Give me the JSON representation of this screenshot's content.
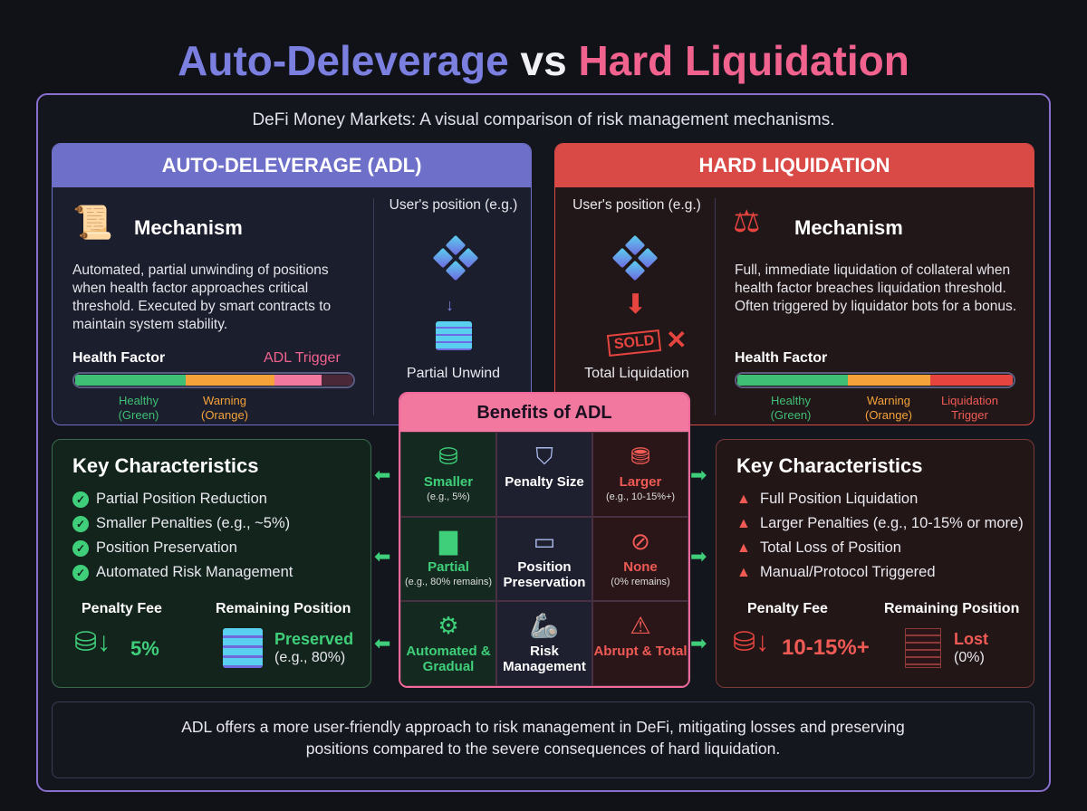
{
  "title": {
    "part1": "Auto-Deleverage",
    "part2": "vs",
    "part3": "Hard Liquidation"
  },
  "subtitle": "DeFi Money Markets: A visual comparison of risk management mechanisms.",
  "adl": {
    "header": "AUTO-DELEVERAGE (ADL)",
    "mechanism_title": "Mechanism",
    "description": "Automated, partial unwinding of positions when health factor approaches critical threshold. Executed by smart contracts to maintain system stability.",
    "health_label": "Health Factor",
    "trigger_label": "ADL Trigger",
    "bar_labels": [
      "Healthy (Green)",
      "Warning (Orange)"
    ],
    "position_label": "User's position (e.g.)",
    "result_label": "Partial Unwind"
  },
  "hard": {
    "header": "HARD LIQUIDATION",
    "mechanism_title": "Mechanism",
    "description": "Full, immediate liquidation of collateral when health factor breaches liquidation threshold. Often triggered by liquidator bots for a bonus.",
    "health_label": "Health Factor",
    "bar_labels": [
      "Healthy (Green)",
      "Warning (Orange)",
      "Liquidation Trigger"
    ],
    "position_label": "User's position (e.g.)",
    "sold_stamp": "SOLD",
    "result_label": "Total Liquidation"
  },
  "benefits": {
    "title": "Benefits of ADL",
    "rows": [
      {
        "adl": "Smaller",
        "adl_sub": "(e.g., 5%)",
        "center": "Penalty Size",
        "hard": "Larger",
        "hard_sub": "(e.g., 10-15%+)"
      },
      {
        "adl": "Partial",
        "adl_sub": "(e.g., 80% remains)",
        "center": "Position Preservation",
        "hard": "None",
        "hard_sub": "(0% remains)"
      },
      {
        "adl": "Automated & Gradual",
        "adl_sub": "",
        "center": "Risk Management",
        "hard": "Abrupt & Total",
        "hard_sub": ""
      }
    ]
  },
  "adl_chars": {
    "title": "Key Characteristics",
    "items": [
      "Partial Position Reduction",
      "Smaller Penalties (e.g., ~5%)",
      "Position Preservation",
      "Automated Risk Management"
    ],
    "penalty_label": "Penalty Fee",
    "penalty_value": "5%",
    "remaining_label": "Remaining Position",
    "remaining_value": "Preserved",
    "remaining_sub": "(e.g., 80%)"
  },
  "hard_chars": {
    "title": "Key Characteristics",
    "items": [
      "Full Position Liquidation",
      "Larger Penalties (e.g., 10-15% or more)",
      "Total Loss of Position",
      "Manual/Protocol Triggered"
    ],
    "penalty_label": "Penalty Fee",
    "penalty_value": "10-15%+",
    "remaining_label": "Remaining Position",
    "remaining_value": "Lost",
    "remaining_sub": "(0%)"
  },
  "footer": "ADL offers a more user-friendly approach to risk management in DeFi, mitigating losses and preserving positions compared to the severe consequences of hard liquidation.",
  "colors": {
    "adl": "#6d6fc9",
    "hard": "#d94a47",
    "healthy": "#3fbf75",
    "warning": "#f5a23a",
    "trigger": "#f2628f",
    "benefits": "#f2789f"
  }
}
